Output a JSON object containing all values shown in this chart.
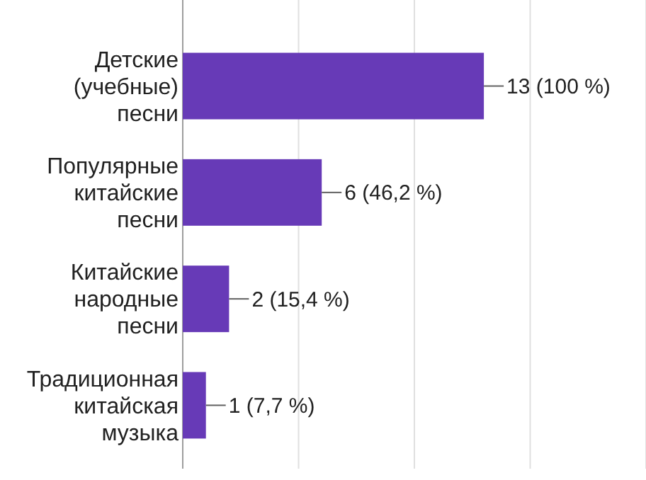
{
  "chart_data": {
    "type": "bar",
    "orientation": "horizontal",
    "categories": [
      "Детские (учебные) песни",
      "Популярные китайские песни",
      "Китайские народные песни",
      "Традиционная китайская музыка"
    ],
    "values": [
      13,
      6,
      2,
      1
    ],
    "color": "#673ab7",
    "value_labels": [
      "13 (100 %)",
      "6 (46,2 %)",
      "2 (15,4 %)",
      "1 (7,7 %)"
    ],
    "xlim": [
      0,
      20
    ],
    "xticks": [
      {
        "value": 0,
        "label": null
      },
      {
        "value": 5,
        "label": null
      },
      {
        "value": 10,
        "label": null
      },
      {
        "value": 15,
        "label": null
      },
      {
        "value": 20,
        "label": null
      }
    ],
    "grid": "x",
    "tick_labels": "y"
  }
}
